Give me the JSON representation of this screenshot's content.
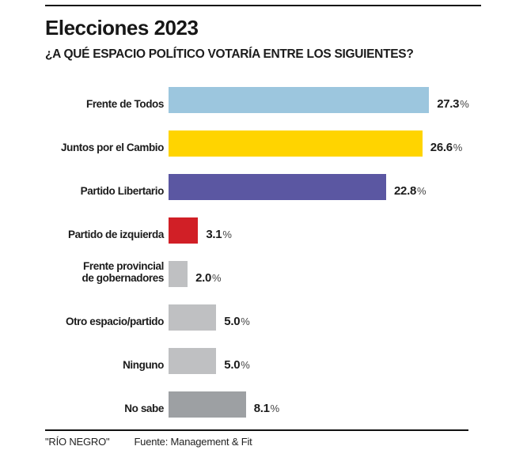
{
  "header": {
    "title": "Elecciones 2023",
    "subtitle": "¿A QUÉ ESPACIO POLÍTICO VOTARÍA ENTRE LOS SIGUIENTES?"
  },
  "chart_data": {
    "type": "bar",
    "orientation": "horizontal",
    "title": "Elecciones 2023",
    "subtitle": "¿A QUÉ ESPACIO POLÍTICO VOTARÍA ENTRE LOS SIGUIENTES?",
    "categories": [
      "Frente de Todos",
      "Juntos por el Cambio",
      "Partido Libertario",
      "Partido de izquierda",
      "Frente provincial\nde gobernadores",
      "Otro espacio/partido",
      "Ninguno",
      "No sabe"
    ],
    "values": [
      27.3,
      26.6,
      22.8,
      3.1,
      2.0,
      5.0,
      5.0,
      8.1
    ],
    "value_texts": [
      "27.3",
      "26.6",
      "22.8",
      "3.1",
      "2.0",
      "5.0",
      "5.0",
      "8.1"
    ],
    "percent_sign": "%",
    "colors": [
      "#9cc6de",
      "#ffd400",
      "#5b57a2",
      "#d11f26",
      "#bfc0c2",
      "#bfc0c2",
      "#bfc0c2",
      "#9da0a3"
    ],
    "xlim": [
      0,
      30
    ],
    "grid": false,
    "legend": false,
    "value_label_position": "end-of-bar"
  },
  "footer": {
    "brand": "\"RÍO NEGRO\"",
    "source": "Fuente: Management & Fit"
  }
}
